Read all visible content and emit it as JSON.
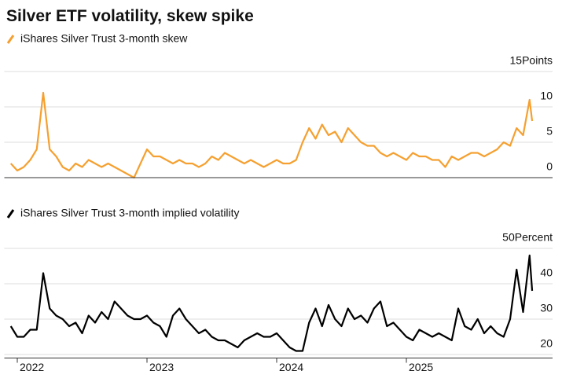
{
  "title": "Silver ETF volatility, skew spike",
  "chart_data": [
    {
      "type": "line",
      "x": [
        2021.95,
        2022.0,
        2022.05,
        2022.1,
        2022.15,
        2022.2,
        2022.25,
        2022.3,
        2022.35,
        2022.4,
        2022.45,
        2022.5,
        2022.55,
        2022.6,
        2022.65,
        2022.7,
        2022.75,
        2022.8,
        2022.85,
        2022.9,
        2022.95,
        2023.0,
        2023.05,
        2023.1,
        2023.15,
        2023.2,
        2023.25,
        2023.3,
        2023.35,
        2023.4,
        2023.45,
        2023.5,
        2023.55,
        2023.6,
        2023.65,
        2023.7,
        2023.75,
        2023.8,
        2023.85,
        2023.9,
        2023.95,
        2024.0,
        2024.05,
        2024.1,
        2024.15,
        2024.2,
        2024.25,
        2024.3,
        2024.35,
        2024.4,
        2024.45,
        2024.5,
        2024.55,
        2024.6,
        2024.65,
        2024.7,
        2024.75,
        2024.8,
        2024.85,
        2024.9,
        2024.95,
        2025.0,
        2025.05,
        2025.1,
        2025.15,
        2025.2,
        2025.25,
        2025.3,
        2025.35,
        2025.4,
        2025.45,
        2025.5,
        2025.55,
        2025.6,
        2025.65,
        2025.7,
        2025.75,
        2025.8,
        2025.85,
        2025.9,
        2025.95,
        2025.97
      ],
      "series": [
        {
          "name": "iShares Silver Trust 3-month skew",
          "color": "#f5a030",
          "values": [
            2,
            1,
            1.5,
            2.5,
            4,
            12,
            4,
            3,
            1.5,
            1,
            2,
            1.5,
            2.5,
            2,
            1.5,
            2,
            1.5,
            1,
            0.5,
            0,
            2,
            4,
            3,
            3,
            2.5,
            2,
            2.5,
            2,
            2,
            1.5,
            2,
            3,
            2.5,
            3.5,
            3,
            2.5,
            2,
            2.5,
            2,
            1.5,
            2,
            2.5,
            2,
            2,
            2.5,
            5,
            7,
            5.5,
            7.5,
            6,
            6.5,
            5,
            7,
            6,
            5,
            4.5,
            4.5,
            3.5,
            3,
            3.5,
            3,
            2.5,
            3.5,
            3,
            3,
            2.5,
            2.5,
            1.5,
            3,
            2.5,
            3,
            3.5,
            3.5,
            3,
            3.5,
            4,
            5,
            4.5,
            7,
            6,
            11,
            8
          ]
        }
      ],
      "xlim": [
        2021.9,
        2026.0
      ],
      "ylim": [
        0,
        15
      ],
      "yticks": [
        {
          "value": 15,
          "label": "15Points"
        },
        10,
        5,
        0
      ]
    },
    {
      "type": "line",
      "x": [
        2021.95,
        2022.0,
        2022.05,
        2022.1,
        2022.15,
        2022.2,
        2022.25,
        2022.3,
        2022.35,
        2022.4,
        2022.45,
        2022.5,
        2022.55,
        2022.6,
        2022.65,
        2022.7,
        2022.75,
        2022.8,
        2022.85,
        2022.9,
        2022.95,
        2023.0,
        2023.05,
        2023.1,
        2023.15,
        2023.2,
        2023.25,
        2023.3,
        2023.35,
        2023.4,
        2023.45,
        2023.5,
        2023.55,
        2023.6,
        2023.65,
        2023.7,
        2023.75,
        2023.8,
        2023.85,
        2023.9,
        2023.95,
        2024.0,
        2024.05,
        2024.1,
        2024.15,
        2024.2,
        2024.25,
        2024.3,
        2024.35,
        2024.4,
        2024.45,
        2024.5,
        2024.55,
        2024.6,
        2024.65,
        2024.7,
        2024.75,
        2024.8,
        2024.85,
        2024.9,
        2024.95,
        2025.0,
        2025.05,
        2025.1,
        2025.15,
        2025.2,
        2025.25,
        2025.3,
        2025.35,
        2025.4,
        2025.45,
        2025.5,
        2025.55,
        2025.6,
        2025.65,
        2025.7,
        2025.75,
        2025.8,
        2025.85,
        2025.9,
        2025.95,
        2025.97
      ],
      "series": [
        {
          "name": "iShares Silver Trust 3-month implied volatility",
          "color": "#000000",
          "values": [
            28,
            25,
            25,
            27,
            27,
            43,
            33,
            31,
            30,
            28,
            29,
            26,
            31,
            29,
            32,
            30,
            35,
            33,
            31,
            30,
            30,
            31,
            29,
            28,
            25,
            31,
            33,
            30,
            28,
            26,
            27,
            25,
            24,
            24,
            23,
            22,
            24,
            25,
            26,
            25,
            25,
            26,
            24,
            22,
            21,
            21,
            29,
            33,
            28,
            34,
            30,
            28,
            33,
            30,
            31,
            29,
            33,
            35,
            28,
            29,
            27,
            25,
            24,
            27,
            26,
            25,
            26,
            25,
            24,
            33,
            28,
            27,
            30,
            26,
            28,
            26,
            25,
            30,
            44,
            32,
            48,
            38
          ]
        }
      ],
      "xlim": [
        2021.9,
        2026.0
      ],
      "xticks": [
        2022,
        2023,
        2024,
        2025
      ],
      "ylim": [
        19,
        50
      ],
      "yticks": [
        {
          "value": 50,
          "label": "50Percent"
        },
        40,
        30,
        20
      ]
    }
  ]
}
